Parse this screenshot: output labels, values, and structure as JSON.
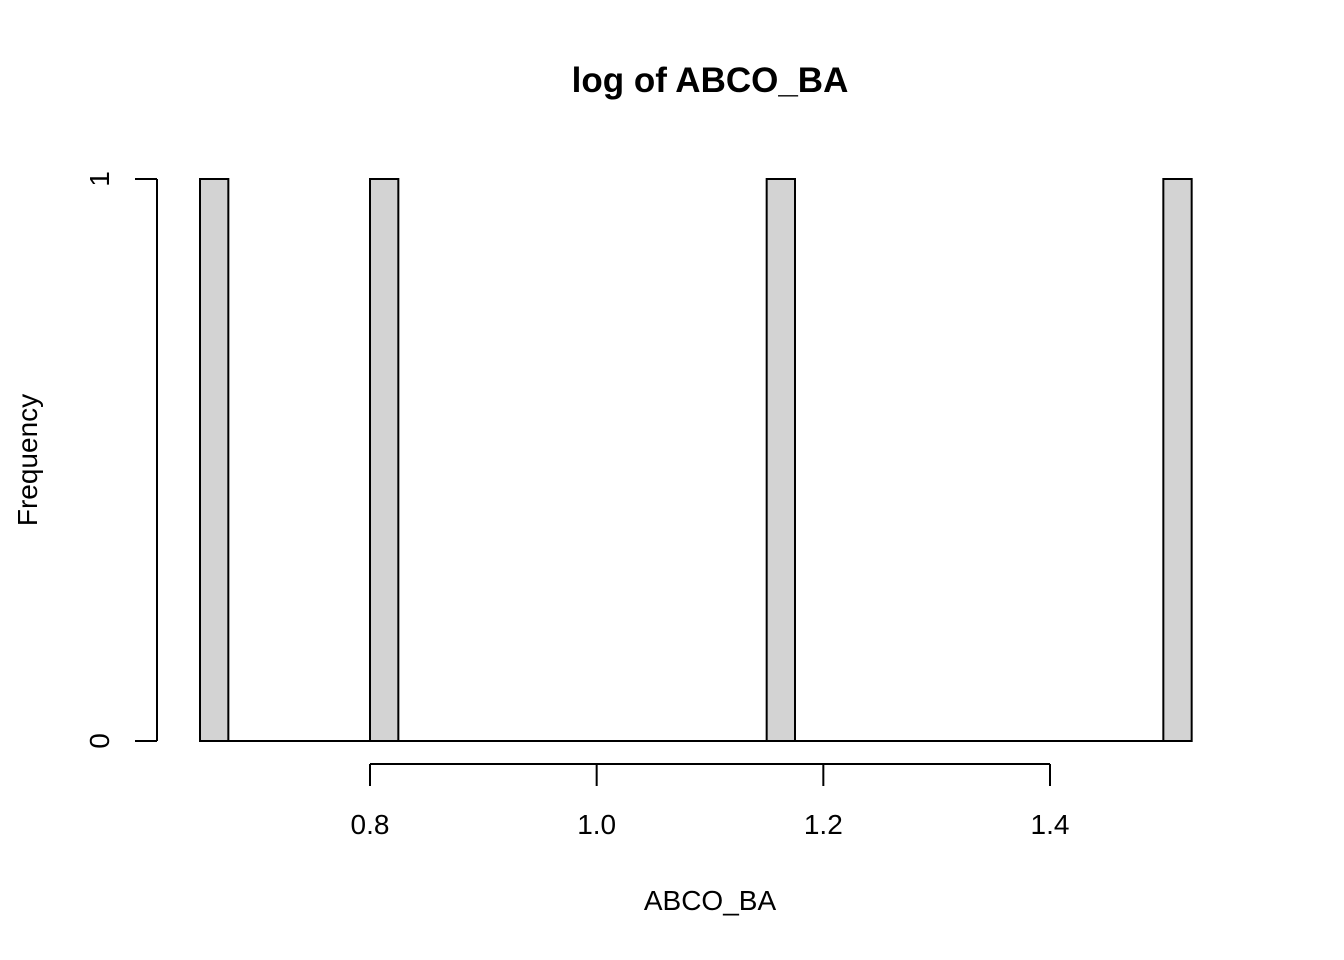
{
  "chart_data": {
    "type": "bar",
    "subtype": "histogram",
    "title": "log of ABCO_BA",
    "xlabel": "ABCO_BA",
    "ylabel": "Frequency",
    "bin_width": 0.025,
    "bins": [
      {
        "x0": 0.65,
        "x1": 0.675,
        "count": 1
      },
      {
        "x0": 0.675,
        "x1": 0.7,
        "count": 0
      },
      {
        "x0": 0.7,
        "x1": 0.725,
        "count": 0
      },
      {
        "x0": 0.725,
        "x1": 0.75,
        "count": 0
      },
      {
        "x0": 0.75,
        "x1": 0.775,
        "count": 0
      },
      {
        "x0": 0.775,
        "x1": 0.8,
        "count": 0
      },
      {
        "x0": 0.8,
        "x1": 0.825,
        "count": 1
      },
      {
        "x0": 0.825,
        "x1": 0.85,
        "count": 0
      },
      {
        "x0": 0.85,
        "x1": 0.875,
        "count": 0
      },
      {
        "x0": 0.875,
        "x1": 0.9,
        "count": 0
      },
      {
        "x0": 0.9,
        "x1": 0.925,
        "count": 0
      },
      {
        "x0": 0.925,
        "x1": 0.95,
        "count": 0
      },
      {
        "x0": 0.95,
        "x1": 0.975,
        "count": 0
      },
      {
        "x0": 0.975,
        "x1": 1.0,
        "count": 0
      },
      {
        "x0": 1.0,
        "x1": 1.025,
        "count": 0
      },
      {
        "x0": 1.025,
        "x1": 1.05,
        "count": 0
      },
      {
        "x0": 1.05,
        "x1": 1.075,
        "count": 0
      },
      {
        "x0": 1.075,
        "x1": 1.1,
        "count": 0
      },
      {
        "x0": 1.1,
        "x1": 1.125,
        "count": 0
      },
      {
        "x0": 1.125,
        "x1": 1.15,
        "count": 0
      },
      {
        "x0": 1.15,
        "x1": 1.175,
        "count": 1
      },
      {
        "x0": 1.175,
        "x1": 1.2,
        "count": 0
      },
      {
        "x0": 1.2,
        "x1": 1.225,
        "count": 0
      },
      {
        "x0": 1.225,
        "x1": 1.25,
        "count": 0
      },
      {
        "x0": 1.25,
        "x1": 1.275,
        "count": 0
      },
      {
        "x0": 1.275,
        "x1": 1.3,
        "count": 0
      },
      {
        "x0": 1.3,
        "x1": 1.325,
        "count": 0
      },
      {
        "x0": 1.325,
        "x1": 1.35,
        "count": 0
      },
      {
        "x0": 1.35,
        "x1": 1.375,
        "count": 0
      },
      {
        "x0": 1.375,
        "x1": 1.4,
        "count": 0
      },
      {
        "x0": 1.4,
        "x1": 1.425,
        "count": 0
      },
      {
        "x0": 1.425,
        "x1": 1.45,
        "count": 0
      },
      {
        "x0": 1.45,
        "x1": 1.475,
        "count": 0
      },
      {
        "x0": 1.475,
        "x1": 1.5,
        "count": 0
      },
      {
        "x0": 1.5,
        "x1": 1.525,
        "count": 1
      }
    ],
    "xlim": [
      0.6,
      1.55
    ],
    "ylim": [
      0,
      1
    ],
    "x_ticks": [
      0.8,
      1.0,
      1.2,
      1.4
    ],
    "x_tick_labels": [
      "0.8",
      "1.0",
      "1.2",
      "1.4"
    ],
    "y_ticks": [
      0,
      1
    ],
    "y_tick_labels": [
      "0",
      "1"
    ],
    "grid": false,
    "colors": {
      "bar_fill": "#d3d3d3",
      "bar_stroke": "#000000"
    }
  }
}
